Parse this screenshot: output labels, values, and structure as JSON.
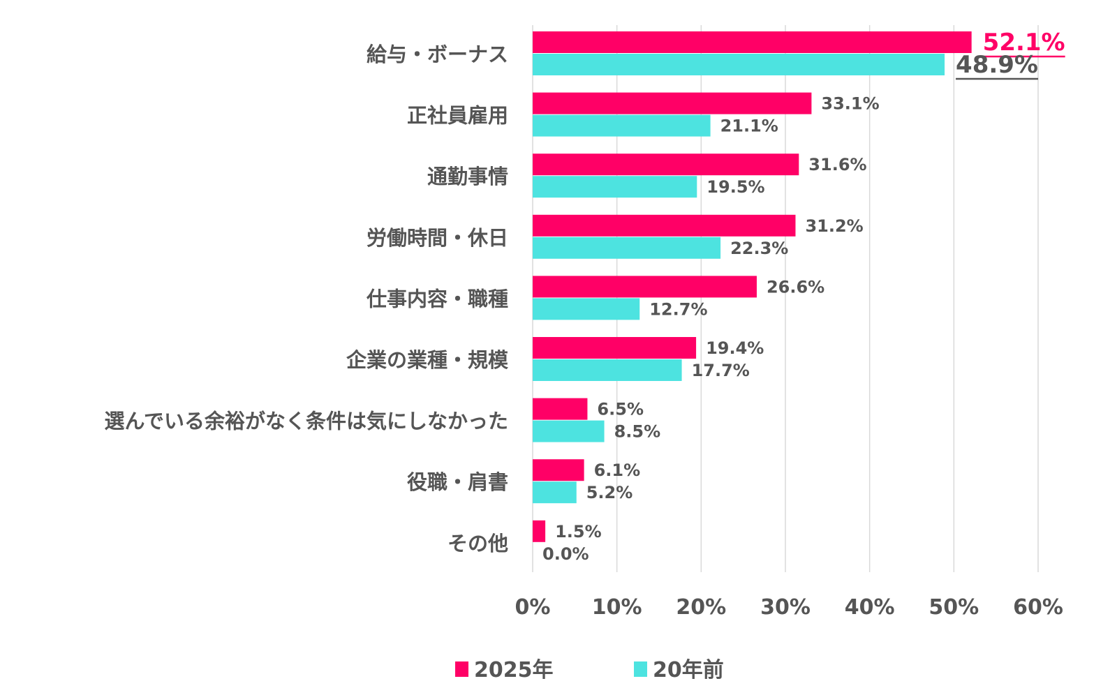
{
  "chart_data": {
    "type": "bar",
    "orientation": "horizontal",
    "categories": [
      "給与・ボーナス",
      "正社員雇用",
      "通勤事情",
      "労働時間・休日",
      "仕事内容・職種",
      "企業の業種・規模",
      "選んでいる余裕がなく条件は気にしなかった",
      "役職・肩書",
      "その他"
    ],
    "series": [
      {
        "name": "2025年",
        "color": "#ff0066",
        "values": [
          52.1,
          33.1,
          31.6,
          31.2,
          26.6,
          19.4,
          6.5,
          6.1,
          1.5
        ],
        "labels": [
          "52.1%",
          "33.1%",
          "31.6%",
          "31.2%",
          "26.6%",
          "19.4%",
          "6.5%",
          "6.1%",
          "1.5%"
        ]
      },
      {
        "name": "20年前",
        "color": "#4de3e0",
        "values": [
          48.9,
          21.1,
          19.5,
          22.3,
          12.7,
          17.7,
          8.5,
          5.2,
          0.0
        ],
        "labels": [
          "48.9%",
          "21.1%",
          "19.5%",
          "22.3%",
          "12.7%",
          "17.7%",
          "8.5%",
          "5.2%",
          "0.0%"
        ]
      }
    ],
    "xlim": [
      0,
      60
    ],
    "xticks": [
      "0%",
      "10%",
      "20%",
      "30%",
      "40%",
      "50%",
      "60%"
    ],
    "grid": true,
    "legend_position": "bottom",
    "text_color": "#555555",
    "grid_color": "#d9d9d9"
  }
}
